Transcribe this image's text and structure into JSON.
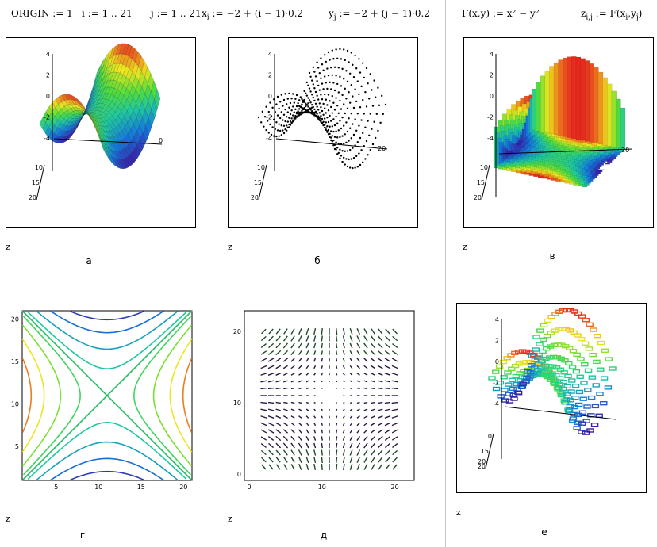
{
  "formulas": {
    "origin": "ORIGIN := 1",
    "i_range": "i := 1 .. 21",
    "j_range": "j := 1 .. 21",
    "x_def": "x := −2 + (i − 1)·0.2",
    "x_sub": "i",
    "y_def": "y := −2 + (j − 1)·0.2",
    "y_sub": "j",
    "f_def": "F(x,y) := x² − y²",
    "z_def": "z := F(x ,y )",
    "z_sub": "i,j"
  },
  "plots": {
    "a": {
      "caption": "а",
      "zlabel": "z",
      "type": "surface"
    },
    "b": {
      "caption": "б",
      "zlabel": "z",
      "type": "points"
    },
    "v": {
      "caption": "в",
      "zlabel": "z",
      "type": "bars"
    },
    "g": {
      "caption": "г",
      "zlabel": "z",
      "type": "contour",
      "xticks": [
        "5",
        "10",
        "15",
        "20"
      ],
      "yticks": [
        "5",
        "10",
        "15",
        "20"
      ]
    },
    "d": {
      "caption": "д",
      "zlabel": "z",
      "type": "vectorfield",
      "xticks": [
        "0",
        "10",
        "20"
      ],
      "yticks": [
        "0",
        "10",
        "20"
      ]
    },
    "e": {
      "caption": "е",
      "zlabel": "z",
      "type": "patches"
    }
  },
  "axis3d_ticks": {
    "z": [
      "4",
      "2",
      "0",
      "-2",
      "-4"
    ],
    "depth": [
      "10",
      "15",
      "20"
    ],
    "side": [
      "0",
      "20"
    ]
  },
  "colors": {
    "high": "#d82020",
    "mid": "#e0d020",
    "low": "#2020a0",
    "green": "#20c060"
  }
}
